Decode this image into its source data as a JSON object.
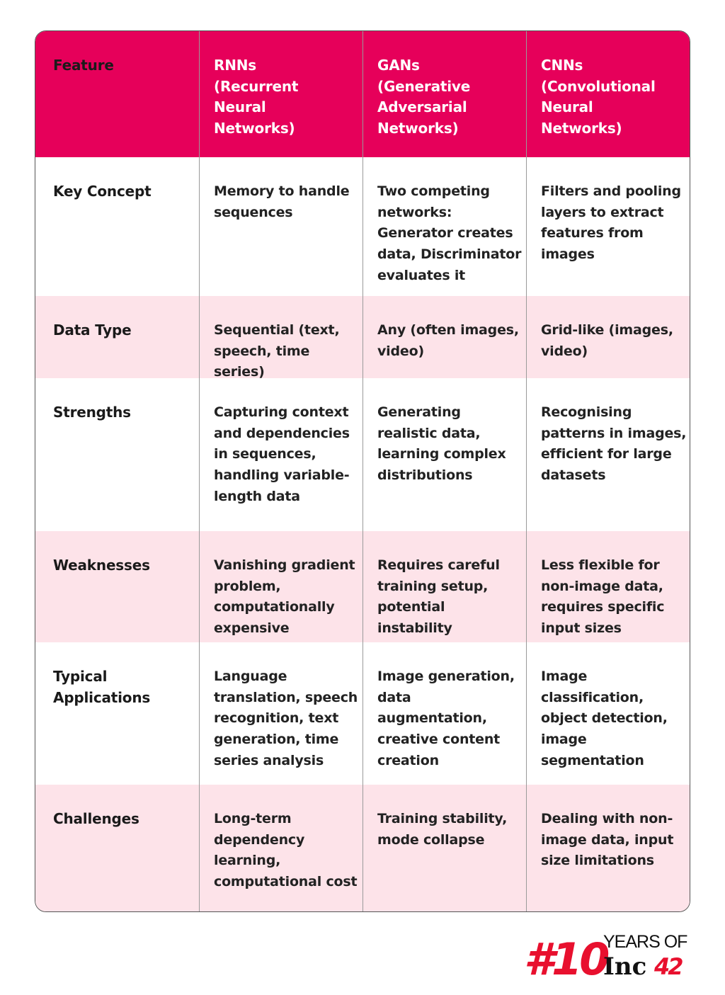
{
  "table": {
    "header": [
      {
        "name": "Feature"
      },
      {
        "name": "RNNs",
        "full_name": "(Recurrent Neural Networks)"
      },
      {
        "name": "GANs",
        "full_name": "(Generative Adversarial Networks)"
      },
      {
        "name": "CNNs",
        "full_name": "(Convolutional Neural Networks)"
      }
    ],
    "rows": [
      [
        "Key Concept",
        "Memory to handle sequences",
        "Two competing networks: Generator creates data, Discriminator evaluates it",
        "Filters and pooling layers to extract features from images"
      ],
      [
        "Data Type",
        "Sequential (text, speech, time series)",
        "Any (often images, video)",
        "Grid-like (images, video)"
      ],
      [
        "Strengths",
        "Capturing context and dependencies in sequences, handling variable-length data",
        "Generating realistic data, learning complex distributions",
        "Recognising patterns in images, efficient for large datasets"
      ],
      [
        "Weaknesses",
        "Vanishing gradient problem, computationally expensive",
        "Requires careful training setup, potential instability",
        "Less flexible for non-image data, requires specific input sizes"
      ],
      [
        "Typical Applications",
        "Language translation, speech recognition, text generation, time series analysis",
        "Image generation, data augmentation, creative content creation",
        "Image classification, object detection, image segmentation"
      ],
      [
        "Challenges",
        "Long-term dependency learning, computational cost",
        "Training stability, mode collapse",
        "Dealing with non-image data, input size limitations"
      ]
    ]
  },
  "logo": {
    "number": "#10",
    "years": "YEARS OF",
    "brand": "Inc",
    "brand_number": "42"
  }
}
